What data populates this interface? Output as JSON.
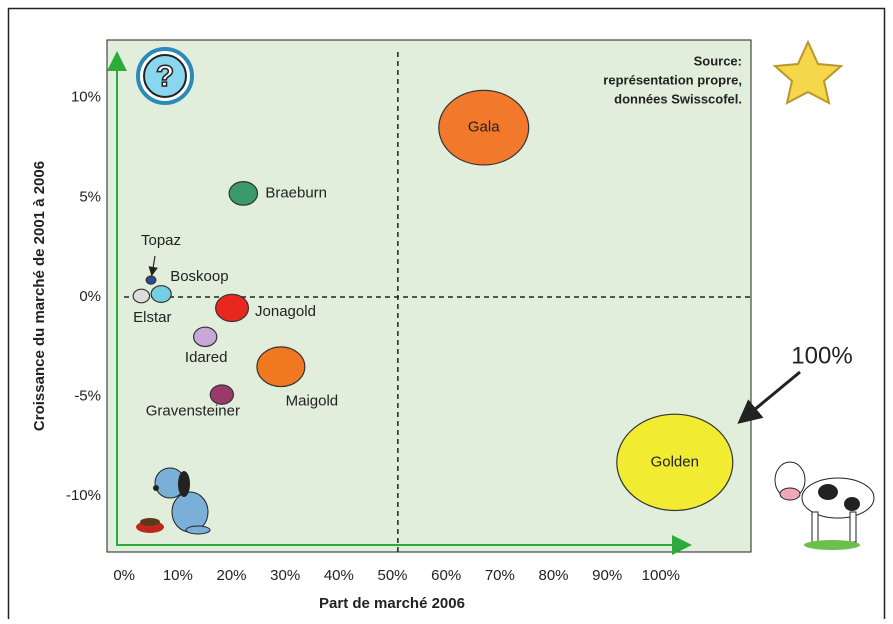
{
  "chart_data": {
    "type": "bubble",
    "xlabel": "Part de marché 2006",
    "ylabel": "Croissance du marché de 2001 à 2006",
    "xlim": [
      -3.2,
      116.8
    ],
    "ylim": [
      -12.8,
      12.9
    ],
    "xticks": [
      {
        "value": 0,
        "label": "0%"
      },
      {
        "value": 10,
        "label": "10%"
      },
      {
        "value": 20,
        "label": "20%"
      },
      {
        "value": 30,
        "label": "30%"
      },
      {
        "value": 40,
        "label": "40%"
      },
      {
        "value": 50,
        "label": "50%"
      },
      {
        "value": 60,
        "label": "60%"
      },
      {
        "value": 70,
        "label": "70%"
      },
      {
        "value": 80,
        "label": "80%"
      },
      {
        "value": 90,
        "label": "90%"
      },
      {
        "value": 100,
        "label": "100%"
      }
    ],
    "yticks": [
      {
        "value": -10,
        "label": "-10%"
      },
      {
        "value": -5,
        "label": "-5%"
      },
      {
        "value": 0,
        "label": "0%"
      },
      {
        "value": 5,
        "label": "5%"
      },
      {
        "value": 10,
        "label": "10%"
      }
    ],
    "dividers": {
      "x": 51,
      "y": 0
    },
    "background": "#e0eedb",
    "source": [
      "Source:",
      "représentation propre,",
      "données Swisscofel."
    ],
    "annotation": "100%",
    "points": [
      {
        "name": "Gala",
        "x": 67,
        "y": 8.5,
        "size": 60,
        "color": "#f2792b"
      },
      {
        "name": "Braeburn",
        "x": 22.2,
        "y": 5.2,
        "size": 6,
        "color": "#3a9a6a"
      },
      {
        "name": "Topaz",
        "x": 5,
        "y": 0.85,
        "size": 0.7,
        "color": "#2a4a9a"
      },
      {
        "name": "Boskoop",
        "x": 6.9,
        "y": 0.15,
        "size": 3,
        "color": "#74d0e0"
      },
      {
        "name": "Elstar",
        "x": 3.2,
        "y": 0.05,
        "size": 2,
        "color": "#dddddd"
      },
      {
        "name": "Jonagold",
        "x": 20.1,
        "y": -0.55,
        "size": 8,
        "color": "#e8281e"
      },
      {
        "name": "Idared",
        "x": 15.1,
        "y": -2,
        "size": 4,
        "color": "#c8a8d8"
      },
      {
        "name": "Maigold",
        "x": 29.2,
        "y": -3.5,
        "size": 17,
        "color": "#f07820"
      },
      {
        "name": "Gravensteiner",
        "x": 18.2,
        "y": -4.9,
        "size": 4,
        "color": "#9a3a6a"
      },
      {
        "name": "Golden",
        "x": 102.6,
        "y": -8.3,
        "size": 100,
        "color": "#f1ec32"
      }
    ]
  }
}
